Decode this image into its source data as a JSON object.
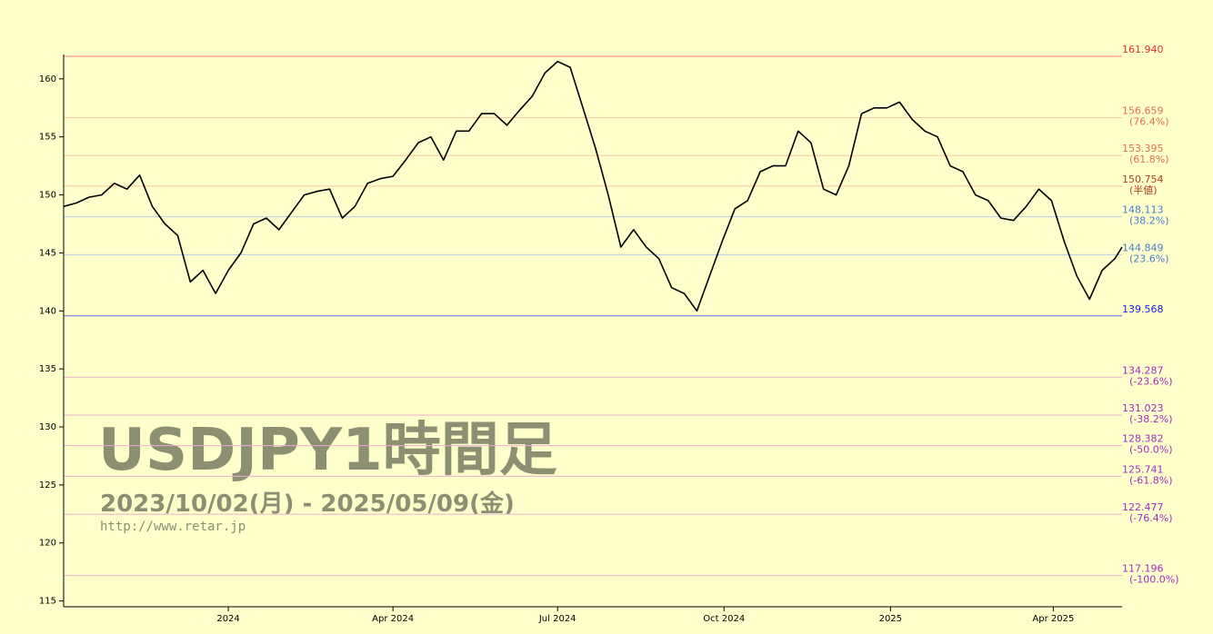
{
  "chart_data": {
    "type": "line",
    "watermark_title": "USDJPY1時間足",
    "watermark_range": "2023/10/02(月) - 2025/05/09(金)",
    "watermark_url": "http://www.retar.jp",
    "color": "#000000",
    "x": [
      "2023-10-02",
      "2023-10-09",
      "2023-10-16",
      "2023-10-23",
      "2023-10-30",
      "2023-11-06",
      "2023-11-13",
      "2023-11-20",
      "2023-11-27",
      "2023-12-04",
      "2023-12-11",
      "2023-12-18",
      "2023-12-25",
      "2024-01-01",
      "2024-01-08",
      "2024-01-15",
      "2024-01-22",
      "2024-01-29",
      "2024-02-05",
      "2024-02-12",
      "2024-02-19",
      "2024-02-26",
      "2024-03-04",
      "2024-03-11",
      "2024-03-18",
      "2024-03-25",
      "2024-04-01",
      "2024-04-08",
      "2024-04-15",
      "2024-04-22",
      "2024-04-29",
      "2024-05-06",
      "2024-05-13",
      "2024-05-20",
      "2024-05-27",
      "2024-06-03",
      "2024-06-10",
      "2024-06-17",
      "2024-06-24",
      "2024-07-01",
      "2024-07-08",
      "2024-07-15",
      "2024-07-22",
      "2024-07-29",
      "2024-08-05",
      "2024-08-12",
      "2024-08-19",
      "2024-08-26",
      "2024-09-02",
      "2024-09-09",
      "2024-09-16",
      "2024-09-23",
      "2024-09-30",
      "2024-10-07",
      "2024-10-14",
      "2024-10-21",
      "2024-10-28",
      "2024-11-04",
      "2024-11-11",
      "2024-11-18",
      "2024-11-25",
      "2024-12-02",
      "2024-12-09",
      "2024-12-16",
      "2024-12-23",
      "2024-12-30",
      "2025-01-06",
      "2025-01-13",
      "2025-01-20",
      "2025-01-27",
      "2025-02-03",
      "2025-02-10",
      "2025-02-17",
      "2025-02-24",
      "2025-03-03",
      "2025-03-10",
      "2025-03-17",
      "2025-03-24",
      "2025-03-31",
      "2025-04-07",
      "2025-04-14",
      "2025-04-21",
      "2025-04-28",
      "2025-05-05",
      "2025-05-09"
    ],
    "values": [
      149.0,
      149.3,
      149.8,
      150.0,
      151.0,
      150.5,
      151.7,
      149.0,
      147.5,
      146.5,
      142.5,
      143.5,
      141.5,
      143.5,
      145.0,
      147.5,
      148.0,
      147.0,
      148.5,
      150.0,
      150.3,
      150.5,
      148.0,
      149.0,
      151.0,
      151.4,
      151.6,
      153.0,
      154.5,
      155.0,
      153.0,
      155.5,
      155.5,
      157.0,
      157.0,
      156.0,
      157.3,
      158.5,
      160.5,
      161.5,
      161.0,
      157.5,
      154.0,
      150.0,
      145.5,
      147.0,
      145.5,
      144.5,
      142.0,
      141.5,
      140.0,
      143.0,
      146.0,
      148.8,
      149.5,
      152.0,
      152.5,
      152.5,
      155.5,
      154.5,
      150.5,
      150.0,
      152.5,
      157.0,
      157.5,
      157.5,
      158.0,
      156.5,
      155.5,
      155.0,
      152.5,
      152.0,
      150.0,
      149.5,
      148.0,
      147.8,
      149.0,
      150.5,
      149.5,
      146.0,
      143.0,
      141.0,
      143.5,
      144.5,
      145.5
    ],
    "xlim": [
      "2023-10-02",
      "2025-05-09"
    ],
    "xticks": [
      {
        "value": "2024-01-01",
        "label": "2024"
      },
      {
        "value": "2024-04-01",
        "label": "Apr 2024"
      },
      {
        "value": "2024-07-01",
        "label": "Jul 2024"
      },
      {
        "value": "2024-10-01",
        "label": "Oct 2024"
      },
      {
        "value": "2025-01-01",
        "label": "2025"
      },
      {
        "value": "2025-04-01",
        "label": "Apr 2025"
      }
    ],
    "ylim": [
      114.5,
      162.1
    ],
    "yticks": [
      115,
      120,
      125,
      130,
      135,
      140,
      145,
      150,
      155,
      160
    ],
    "levels": {
      "values": [
        161.94,
        156.659,
        153.395,
        150.754,
        148.113,
        144.849,
        139.568,
        134.287,
        131.023,
        128.382,
        125.741,
        122.477,
        117.196
      ],
      "value_labels": [
        "161.940",
        "156.659",
        "153.395",
        "150.754",
        "148.113",
        "144.849",
        "139.568",
        "134.287",
        "131.023",
        "128.382",
        "125.741",
        "122.477",
        "117.196"
      ],
      "ratio_labels": [
        null,
        "(76.4%)",
        "(61.8%)",
        "(半値)",
        "(38.2%)",
        "(23.6%)",
        null,
        "(-23.6%)",
        "(-38.2%)",
        "(-50.0%)",
        "(-61.8%)",
        "(-76.4%)",
        "(-100.0%)"
      ],
      "colors": [
        "#e03030",
        "#e07050",
        "#e07050",
        "#b04020",
        "#4a7bd0",
        "#4a7bd0",
        "#2020e0",
        "#9a30c0",
        "#9a30c0",
        "#9a30c0",
        "#9a30c0",
        "#9a30c0",
        "#9a30c0"
      ],
      "line_colors": [
        "#f08080",
        "#f5c8a0",
        "#f5c8a0",
        "#f5c8a0",
        "#b8c8e8",
        "#b8c8e8",
        "#6060e0",
        "#e8b0d0",
        "#e8b0d0",
        "#e8b0d0",
        "#e8b0d0",
        "#e8b0d0",
        "#e8b0d0"
      ]
    }
  }
}
